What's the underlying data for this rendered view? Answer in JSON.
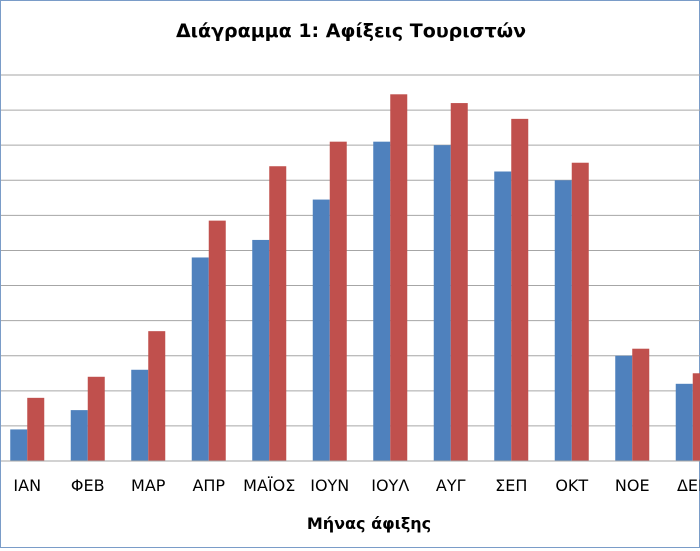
{
  "chart_data": {
    "type": "bar",
    "title": "Διάγραμμα 1: Αφίξεις Τουριστών",
    "xlabel": "Μήνας άφιξης",
    "ylabel": "",
    "categories": [
      "ΙΑΝ",
      "ΦΕΒ",
      "ΜΑΡ",
      "ΑΠΡ",
      "ΜΑΪΟΣ",
      "ΙΟΥΝ",
      "ΙΟΥΛ",
      "ΑΥΓ",
      "ΣΕΠ",
      "ΟΚΤ",
      "ΝΟΕ",
      "ΔΕΚ"
    ],
    "series": [
      {
        "color": "#4f81bd",
        "values": [
          0.9,
          1.45,
          2.6,
          5.8,
          6.3,
          7.45,
          9.1,
          9.0,
          8.25,
          8.0,
          3.0,
          2.2
        ]
      },
      {
        "color": "#c0504d",
        "values": [
          1.8,
          2.4,
          3.7,
          6.85,
          8.4,
          9.1,
          10.45,
          10.2,
          9.75,
          8.5,
          3.2,
          2.5
        ]
      }
    ],
    "ylim": [
      0,
      11
    ],
    "grid": true,
    "legend": "none"
  }
}
